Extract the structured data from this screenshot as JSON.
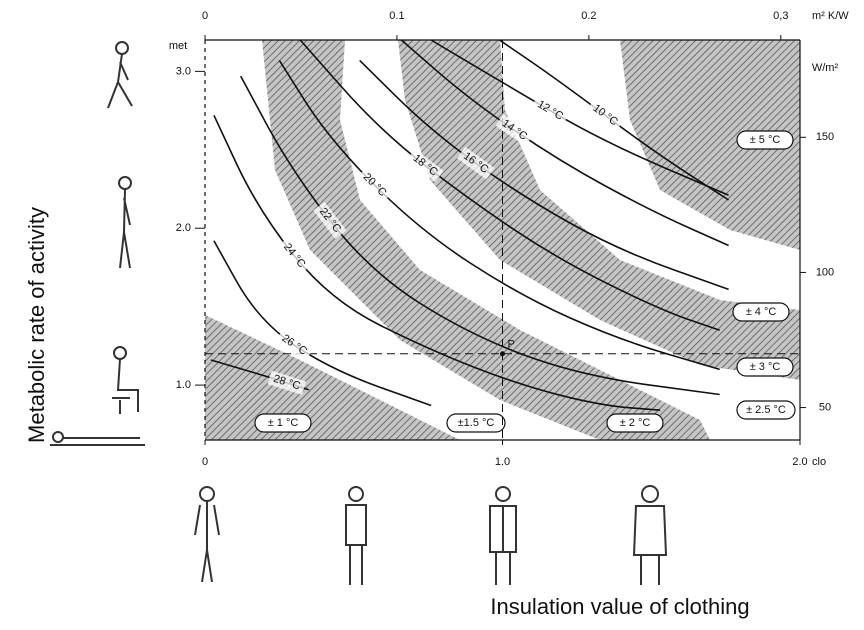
{
  "chart_data": {
    "type": "line",
    "x_title": "Insulation value of clothing",
    "y_title": "Metabolic rate of activity",
    "x_unit": "clo",
    "x2_unit": "m² K/W",
    "y_unit": "met",
    "y2_unit": "W/m²",
    "xlim": [
      0,
      2.0
    ],
    "xticks": [
      0,
      {
        "value": 1,
        "label": "1.0"
      },
      {
        "value": 2,
        "label": "2.0"
      }
    ],
    "x2lim": [
      0,
      0.31
    ],
    "x2ticks": [
      0,
      0.1,
      0.2,
      {
        "value": 0.3,
        "label": "0,3"
      }
    ],
    "ylim": [
      0.65,
      3.2
    ],
    "yticks": [
      {
        "value": 1,
        "label": "1.0"
      },
      {
        "value": 2,
        "label": "2.0"
      },
      {
        "value": 3,
        "label": "3.0"
      }
    ],
    "y2lim": [
      38,
      186
    ],
    "y2ticks": [
      50,
      100,
      150
    ],
    "color": "#111111",
    "series": [
      {
        "name": "10 °C",
        "x": [
          0.99,
          1.19,
          1.5,
          1.76
        ],
        "values": [
          3.2,
          2.94,
          2.5,
          2.18
        ]
      },
      {
        "name": "12 °C",
        "x": [
          0.76,
          0.99,
          1.33,
          1.76
        ],
        "values": [
          3.2,
          2.94,
          2.56,
          2.21
        ]
      },
      {
        "name": "14 °C",
        "x": [
          0.66,
          0.89,
          1.19,
          1.5,
          1.76
        ],
        "values": [
          3.2,
          2.82,
          2.43,
          2.11,
          1.89
        ]
      },
      {
        "name": "16 °C",
        "x": [
          0.52,
          0.76,
          1.06,
          1.39,
          1.76
        ],
        "values": [
          3.07,
          2.62,
          2.21,
          1.86,
          1.61
        ]
      },
      {
        "name": "18 °C",
        "x": [
          0.32,
          0.59,
          0.89,
          1.19,
          1.53,
          1.73
        ],
        "values": [
          3.2,
          2.62,
          2.18,
          1.8,
          1.48,
          1.35
        ]
      },
      {
        "name": "20 °C",
        "x": [
          0.25,
          0.42,
          0.72,
          1.06,
          1.39,
          1.73
        ],
        "values": [
          3.07,
          2.56,
          1.99,
          1.57,
          1.29,
          1.1
        ]
      },
      {
        "name": "22 °C",
        "x": [
          0.12,
          0.29,
          0.55,
          0.89,
          1.26,
          1.73
        ],
        "values": [
          2.97,
          2.37,
          1.73,
          1.32,
          1.06,
          0.94
        ]
      },
      {
        "name": "24 °C",
        "x": [
          0.03,
          0.18,
          0.42,
          0.76,
          1.06,
          1.33,
          1.53
        ],
        "values": [
          2.72,
          2.11,
          1.54,
          1.22,
          1.0,
          0.87,
          0.84
        ]
      },
      {
        "name": "26 °C",
        "x": [
          0.03,
          0.18,
          0.42,
          0.76
        ],
        "values": [
          1.92,
          1.41,
          1.1,
          0.87
        ]
      },
      {
        "name": "28 °C",
        "x": [
          0.02,
          0.2,
          0.35
        ],
        "values": [
          1.16,
          1.06,
          0.97
        ]
      }
    ],
    "tolerances": [
      "± 1 °C",
      "±1.5 °C",
      "± 2 °C",
      "± 2.5 °C",
      "± 3 °C",
      "± 4 °C",
      "± 5 °C"
    ],
    "reference_point": {
      "label": "P",
      "x": 1.0,
      "y": 1.2
    }
  }
}
